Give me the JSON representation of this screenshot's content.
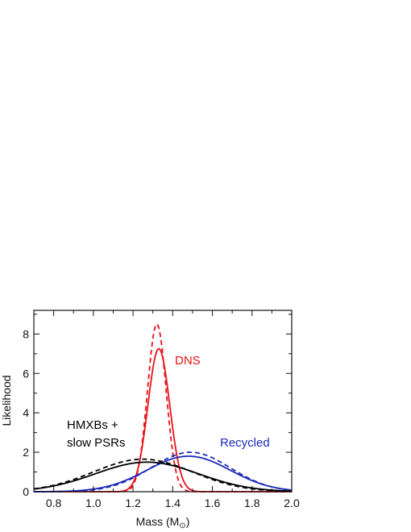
{
  "chart_data": {
    "type": "line",
    "xlabel_main": "Mass (M",
    "xlabel_sub": "⊙",
    "xlabel_close": ")",
    "ylabel": "Likelihood",
    "xlim": [
      0.7,
      2.0
    ],
    "ylim": [
      0,
      9.2
    ],
    "xticks": [
      "0.8",
      "1.0",
      "1.2",
      "1.4",
      "1.6",
      "1.8",
      "2.0"
    ],
    "yticks": [
      "0",
      "2",
      "4",
      "6",
      "8"
    ],
    "grid": false,
    "annotations": {
      "dns": "DNS",
      "recycled": "Recycled",
      "hmxb_line1": "HMXBs +",
      "hmxb_line2": "slow PSRs"
    },
    "colors": {
      "dns": "#e8111a",
      "recycled": "#1a2ab8",
      "hmxb": "#000000"
    },
    "series": [
      {
        "group": "dns",
        "style": "solid",
        "mean": 1.33,
        "sigma": 0.055,
        "peak": 7.25
      },
      {
        "group": "dns",
        "style": "dashed",
        "mean": 1.32,
        "sigma": 0.047,
        "peak": 8.5
      },
      {
        "group": "recycled",
        "style": "solid",
        "mean": 1.48,
        "sigma": 0.21,
        "peak": 1.8
      },
      {
        "group": "recycled",
        "style": "dashed",
        "mean": 1.49,
        "sigma": 0.2,
        "peak": 2.0
      },
      {
        "group": "hmxb",
        "style": "solid",
        "mean": 1.27,
        "sigma": 0.26,
        "peak": 1.5
      },
      {
        "group": "hmxb",
        "style": "dashed",
        "mean": 1.25,
        "sigma": 0.25,
        "peak": 1.65
      }
    ]
  }
}
